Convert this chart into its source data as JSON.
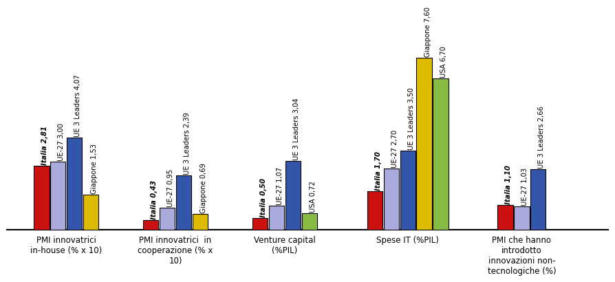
{
  "groups": [
    {
      "label": "PMI innovatrici\nin-house (% x 10)",
      "bars": [
        {
          "label": "Italia 2,81",
          "value": 2.81,
          "color": "#CC1111"
        },
        {
          "label": "UE-27 3,00",
          "value": 3.0,
          "color": "#AAAADD"
        },
        {
          "label": "UE 3 Leaders 4,07",
          "value": 4.07,
          "color": "#3355AA"
        },
        {
          "label": "Giappone 1,53",
          "value": 1.53,
          "color": "#DDBB00"
        }
      ]
    },
    {
      "label": "PMI innovatrici  in\ncooperazione (% x\n10)",
      "bars": [
        {
          "label": "Italia 0,43",
          "value": 0.43,
          "color": "#CC1111"
        },
        {
          "label": "UE-27 0,95",
          "value": 0.95,
          "color": "#AAAADD"
        },
        {
          "label": "UE 3 Leaders 2,39",
          "value": 2.39,
          "color": "#3355AA"
        },
        {
          "label": "Giappone 0,69",
          "value": 0.69,
          "color": "#DDBB00"
        }
      ]
    },
    {
      "label": "Venture capital\n(%PIL)",
      "bars": [
        {
          "label": "Italia 0,50",
          "value": 0.5,
          "color": "#CC1111"
        },
        {
          "label": "UE-27 1,07",
          "value": 1.07,
          "color": "#AAAADD"
        },
        {
          "label": "UE 3 Leaders 3,04",
          "value": 3.04,
          "color": "#3355AA"
        },
        {
          "label": "USA 0,72",
          "value": 0.72,
          "color": "#88BB44"
        }
      ]
    },
    {
      "label": "Spese IT (%PIL)",
      "bars": [
        {
          "label": "Italia 1,70",
          "value": 1.7,
          "color": "#CC1111"
        },
        {
          "label": "UE-27 2,70",
          "value": 2.7,
          "color": "#AAAADD"
        },
        {
          "label": "UE 3 Leaders 3,50",
          "value": 3.5,
          "color": "#3355AA"
        },
        {
          "label": "Giappone 7,60",
          "value": 7.6,
          "color": "#DDBB00"
        },
        {
          "label": "USA 6,70",
          "value": 6.7,
          "color": "#88BB44"
        }
      ]
    },
    {
      "label": "PMI che hanno\nintrodotto\ninnovazioni non-\ntecnologiche (%)",
      "bars": [
        {
          "label": "Italia 1,10",
          "value": 1.1,
          "color": "#CC1111"
        },
        {
          "label": "UE-27 1,03",
          "value": 1.03,
          "color": "#AAAADD"
        },
        {
          "label": "UE 3 Leaders 2,66",
          "value": 2.66,
          "color": "#3355AA"
        }
      ]
    }
  ],
  "centers": [
    0.85,
    2.05,
    3.25,
    4.6,
    5.85
  ],
  "bar_width": 0.18,
  "ylim": [
    0,
    8.8
  ],
  "label_fontsize": 7.2,
  "xlabel_fontsize": 8.5,
  "background_color": "#FFFFFF",
  "xlim": [
    0.2,
    6.8
  ]
}
